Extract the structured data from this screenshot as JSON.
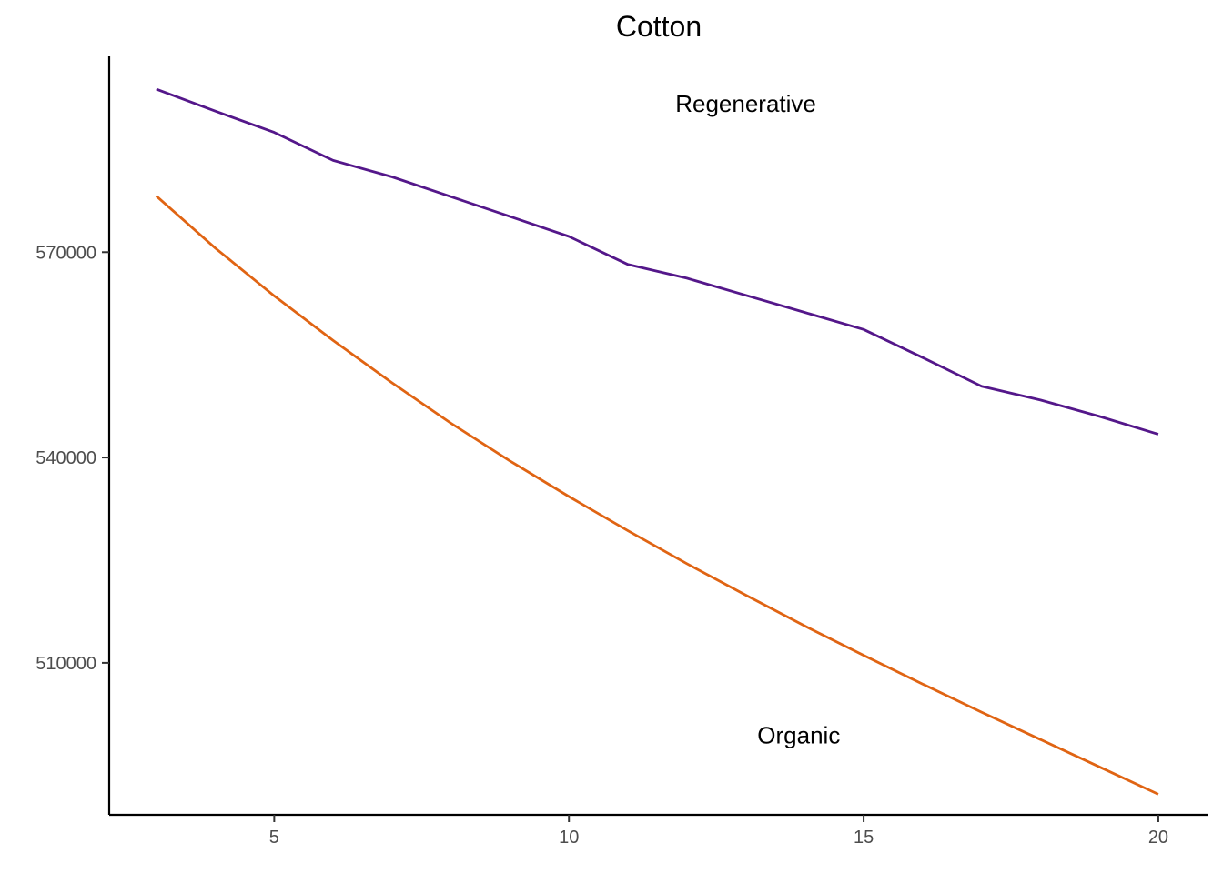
{
  "chart_data": {
    "type": "line",
    "title": "Cotton",
    "xlabel": "",
    "ylabel": "",
    "xlim": [
      2.2,
      20.85
    ],
    "ylim": [
      487800,
      598600
    ],
    "x_ticks": [
      5,
      10,
      15,
      20
    ],
    "x_tick_labels": [
      "5",
      "10",
      "15",
      "20"
    ],
    "y_ticks": [
      510000,
      540000,
      570000
    ],
    "y_tick_labels": [
      "510000",
      "540000",
      "570000"
    ],
    "grid": false,
    "legend": "none",
    "series": [
      {
        "name": "Regenerative",
        "color": "#54178a",
        "x": [
          3,
          4,
          5,
          6,
          7,
          8,
          9,
          10,
          11,
          12,
          13,
          14,
          15,
          16,
          17,
          18,
          19,
          20
        ],
        "values": [
          593800,
          590600,
          587500,
          583400,
          581000,
          578100,
          575200,
          572300,
          568200,
          566200,
          563700,
          561200,
          558700,
          554600,
          550400,
          548400,
          546000,
          543400
        ]
      },
      {
        "name": "Organic",
        "color": "#e06413",
        "x": [
          3,
          4,
          5,
          6,
          7,
          8,
          9,
          10,
          11,
          12,
          13,
          14,
          15,
          16,
          17,
          18,
          19,
          20
        ],
        "values": [
          578200,
          570600,
          563600,
          557100,
          550900,
          545000,
          539500,
          534300,
          529300,
          524500,
          519900,
          515400,
          511100,
          506900,
          502800,
          498800,
          494800,
          490800
        ]
      }
    ]
  }
}
